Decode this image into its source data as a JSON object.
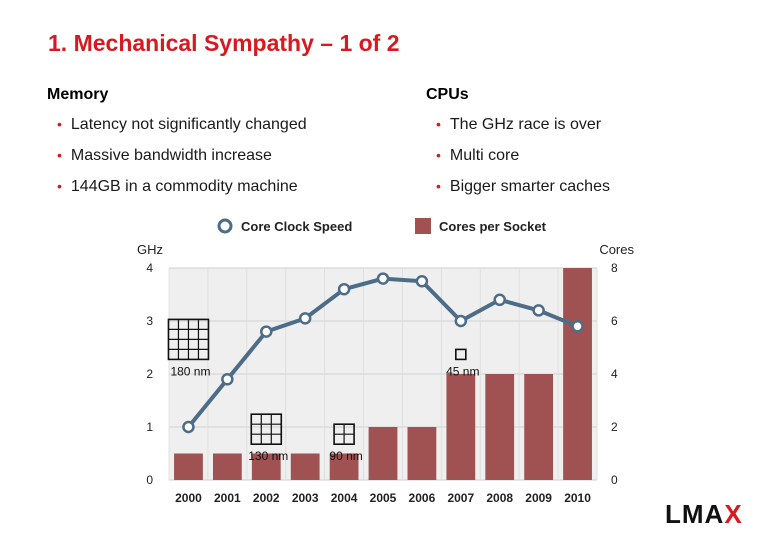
{
  "slide": {
    "title": "1.  Mechanical Sympathy – 1 of 2",
    "columns": [
      {
        "heading": "Memory",
        "bullets": [
          "Latency not significantly changed",
          "Massive bandwidth increase",
          "144GB in a commodity machine"
        ]
      },
      {
        "heading": "CPUs",
        "bullets": [
          "The GHz race is over",
          "Multi core",
          "Bigger smarter caches"
        ]
      }
    ]
  },
  "logo": {
    "main": "LMA",
    "accent": "X"
  },
  "colors": {
    "title": "#d71920",
    "bar": "#a05252",
    "line": "#4d6c88",
    "bullet": "#d71920"
  },
  "chart_data": {
    "type": "bar+line",
    "categories": [
      "2000",
      "2001",
      "2002",
      "2003",
      "2004",
      "2005",
      "2006",
      "2007",
      "2008",
      "2009",
      "2010"
    ],
    "series": [
      {
        "name": "Core Clock Speed",
        "type": "line",
        "axis": "left",
        "values": [
          1.0,
          1.9,
          2.8,
          3.05,
          3.6,
          3.8,
          3.75,
          3.0,
          3.4,
          3.2,
          2.9
        ]
      },
      {
        "name": "Cores per Socket",
        "type": "bar",
        "axis": "right",
        "values": [
          1,
          1,
          1,
          1,
          1,
          2,
          2,
          4,
          4,
          4,
          8
        ]
      }
    ],
    "y_left": {
      "label": "GHz",
      "range": [
        0,
        4
      ],
      "ticks": [
        "0",
        "1",
        "2",
        "3",
        "4"
      ]
    },
    "y_right": {
      "label": "Cores",
      "range": [
        0,
        8
      ],
      "ticks": [
        "0",
        "2",
        "4",
        "6",
        "8"
      ]
    },
    "legend": {
      "position": "top"
    },
    "grid": true,
    "annotations": [
      {
        "text": "180 nm",
        "x": "2000",
        "y": 2.2,
        "grid": 4
      },
      {
        "text": "130 nm",
        "x": "2002",
        "y": 0.6,
        "grid": 3
      },
      {
        "text": "90 nm",
        "x": "2004",
        "y": 0.6,
        "grid": 2
      },
      {
        "text": "45 nm",
        "x": "2007",
        "y": 2.2,
        "grid": 1
      }
    ]
  }
}
